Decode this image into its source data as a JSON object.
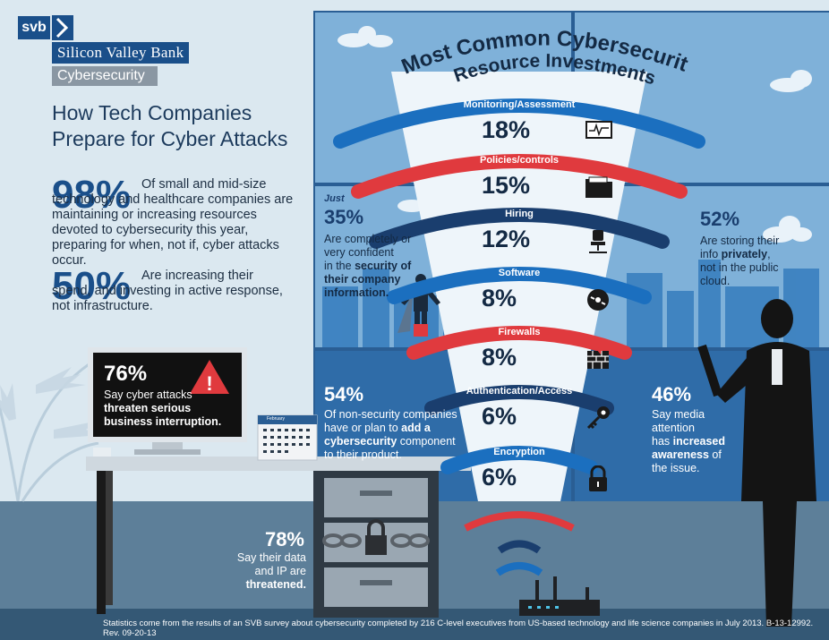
{
  "brand": {
    "logo": "svb",
    "name": "Silicon Valley Bank",
    "section": "Cybersecurity"
  },
  "headline": "How Tech Companies Prepare for Cyber Attacks",
  "stats_left": [
    {
      "value": "98%",
      "text": "Of small and mid-size technology and healthcare companies are maintaining or increasing resources devoted to cybersecurity this year, preparing for when, not if, cyber attacks occur."
    },
    {
      "value": "50%",
      "text": "Are increasing their spend, and investing in active response, not infrastructure."
    }
  ],
  "monitor": {
    "value": "76%",
    "line1": "Say cyber attacks",
    "line2": "threaten serious",
    "line3": "business interruption."
  },
  "calendar": {
    "header": "February"
  },
  "cabinet": {
    "value": "78%",
    "line1": "Say their data",
    "line2_pre": "and IP are ",
    "line2_bold": "threatened."
  },
  "chart_title_line1": "Most Common Cybersecurity",
  "chart_title_line2": "Resource Investments",
  "bands": [
    {
      "label": "Monitoring/Assessment",
      "pct": "18%",
      "icon": "monitor-icon",
      "color": "#1b6fbf"
    },
    {
      "label": "Policies/controls",
      "pct": "15%",
      "icon": "folder-icon",
      "color": "#e03a3e"
    },
    {
      "label": "Hiring",
      "pct": "12%",
      "icon": "chair-icon",
      "color": "#1a3e6e"
    },
    {
      "label": "Software",
      "pct": "8%",
      "icon": "disc-icon",
      "color": "#1b6fbf"
    },
    {
      "label": "Firewalls",
      "pct": "8%",
      "icon": "firewall-icon",
      "color": "#e03a3e"
    },
    {
      "label": "Authentication/Access",
      "pct": "6%",
      "icon": "key-icon",
      "color": "#1a3e6e"
    },
    {
      "label": "Encryption",
      "pct": "6%",
      "icon": "lock-icon",
      "color": "#1b6fbf"
    }
  ],
  "stat_35": {
    "just": "Just",
    "value": "35%",
    "l1": "Are completely or",
    "l2": "very confident",
    "l3_pre": "in the ",
    "l3_bold": "security of",
    "l4": "their company",
    "l5": "information."
  },
  "stat_52": {
    "value": "52%",
    "l1": "Are storing their",
    "l2_pre": "info ",
    "l2_bold": "privately",
    "l2_post": ",",
    "l3": "not in the public",
    "l4": "cloud."
  },
  "stat_54": {
    "value": "54%",
    "l1": "Of non-security companies",
    "l2_pre": "have or plan to ",
    "l2_bold": "add a",
    "l3": "cybersecurity",
    "l3_post": " component",
    "l4": "to their product."
  },
  "stat_46": {
    "value": "46%",
    "l1": "Say media",
    "l2": "attention",
    "l3_pre": "has ",
    "l3_bold": "increased",
    "l4": "awareness",
    "l4_post": " of",
    "l5": "the issue."
  },
  "footnote": "Statistics come from the results of an SVB survey about cybersecurity completed by 216 C-level executives from US-based technology and life science companies in July 2013. B-13-12992. Rev. 09-20-13",
  "colors": {
    "navy": "#1a4f8a",
    "red": "#e03a3e",
    "blue": "#1b6fbf",
    "panel": "#3a78b0",
    "floor": "#5d7f99"
  }
}
